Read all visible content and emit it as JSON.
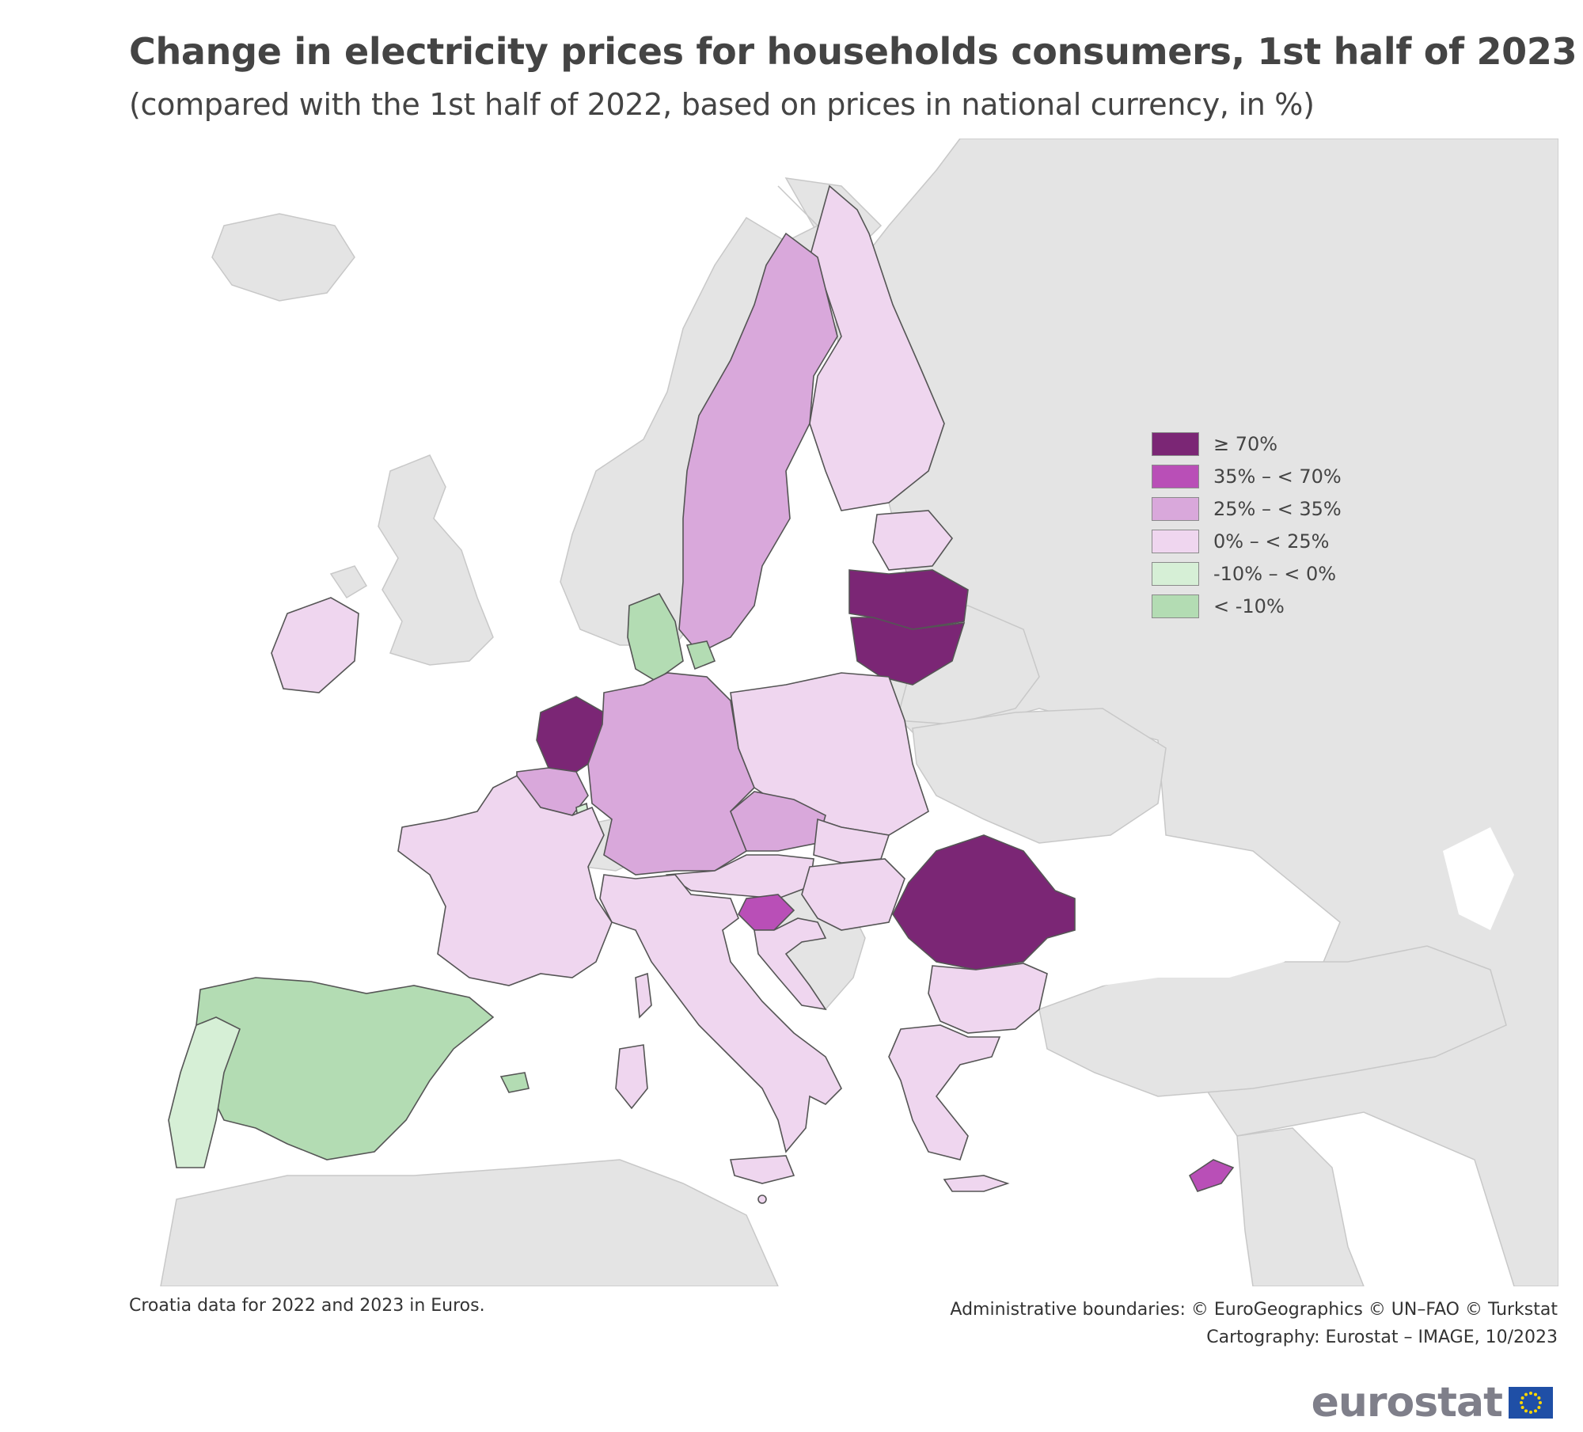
{
  "title": "Change in electricity prices for households consumers, 1st half of 2023",
  "subtitle": "(compared with the 1st half of 2022, based on prices in national currency, in %)",
  "legend": [
    {
      "label": "≥ 70%",
      "color": "#7b2675"
    },
    {
      "label": "35% – < 70%",
      "color": "#b94fb7"
    },
    {
      "label": "25% – < 35%",
      "color": "#d9a8db"
    },
    {
      "label": "0% – < 25%",
      "color": "#efd6ef"
    },
    {
      "label": "-10% – < 0%",
      "color": "#d6efd6"
    },
    {
      "label": "< -10%",
      "color": "#b3dcb3"
    }
  ],
  "colors": {
    "no_data": "#e4e4e4",
    "sea": "#ffffff",
    "border": "#555555"
  },
  "countries": [
    {
      "name": "Latvia",
      "class": "≥ 70%"
    },
    {
      "name": "Lithuania",
      "class": "≥ 70%"
    },
    {
      "name": "Netherlands",
      "class": "≥ 70%"
    },
    {
      "name": "Romania",
      "class": "≥ 70%"
    },
    {
      "name": "Slovenia",
      "class": "35% – < 70%"
    },
    {
      "name": "Cyprus",
      "class": "35% – < 70%"
    },
    {
      "name": "Sweden",
      "class": "25% – < 35%"
    },
    {
      "name": "Germany",
      "class": "25% – < 35%"
    },
    {
      "name": "Czechia",
      "class": "25% – < 35%"
    },
    {
      "name": "Belgium",
      "class": "25% – < 35%"
    },
    {
      "name": "Finland",
      "class": "0% – < 25%"
    },
    {
      "name": "Estonia",
      "class": "0% – < 25%"
    },
    {
      "name": "Poland",
      "class": "0% – < 25%"
    },
    {
      "name": "France",
      "class": "0% – < 25%"
    },
    {
      "name": "Italy",
      "class": "0% – < 25%"
    },
    {
      "name": "Austria",
      "class": "0% – < 25%"
    },
    {
      "name": "Slovakia",
      "class": "0% – < 25%"
    },
    {
      "name": "Hungary",
      "class": "0% – < 25%"
    },
    {
      "name": "Croatia",
      "class": "0% – < 25%"
    },
    {
      "name": "Bulgaria",
      "class": "0% – < 25%"
    },
    {
      "name": "Greece",
      "class": "0% – < 25%"
    },
    {
      "name": "Ireland",
      "class": "0% – < 25%"
    },
    {
      "name": "Malta",
      "class": "0% – < 25%"
    },
    {
      "name": "Portugal",
      "class": "-10% – < 0%"
    },
    {
      "name": "Luxembourg",
      "class": "-10% – < 0%"
    },
    {
      "name": "Spain",
      "class": "< -10%"
    },
    {
      "name": "Denmark",
      "class": "< -10%"
    }
  ],
  "footnote": "Croatia data for 2022 and 2023 in Euros.",
  "credits": {
    "line1": "Administrative boundaries: © EuroGeographics © UN–FAO © Turkstat",
    "line2": "Cartography: Eurostat – IMAGE, 10/2023"
  },
  "logo": {
    "text": "eurostat"
  }
}
